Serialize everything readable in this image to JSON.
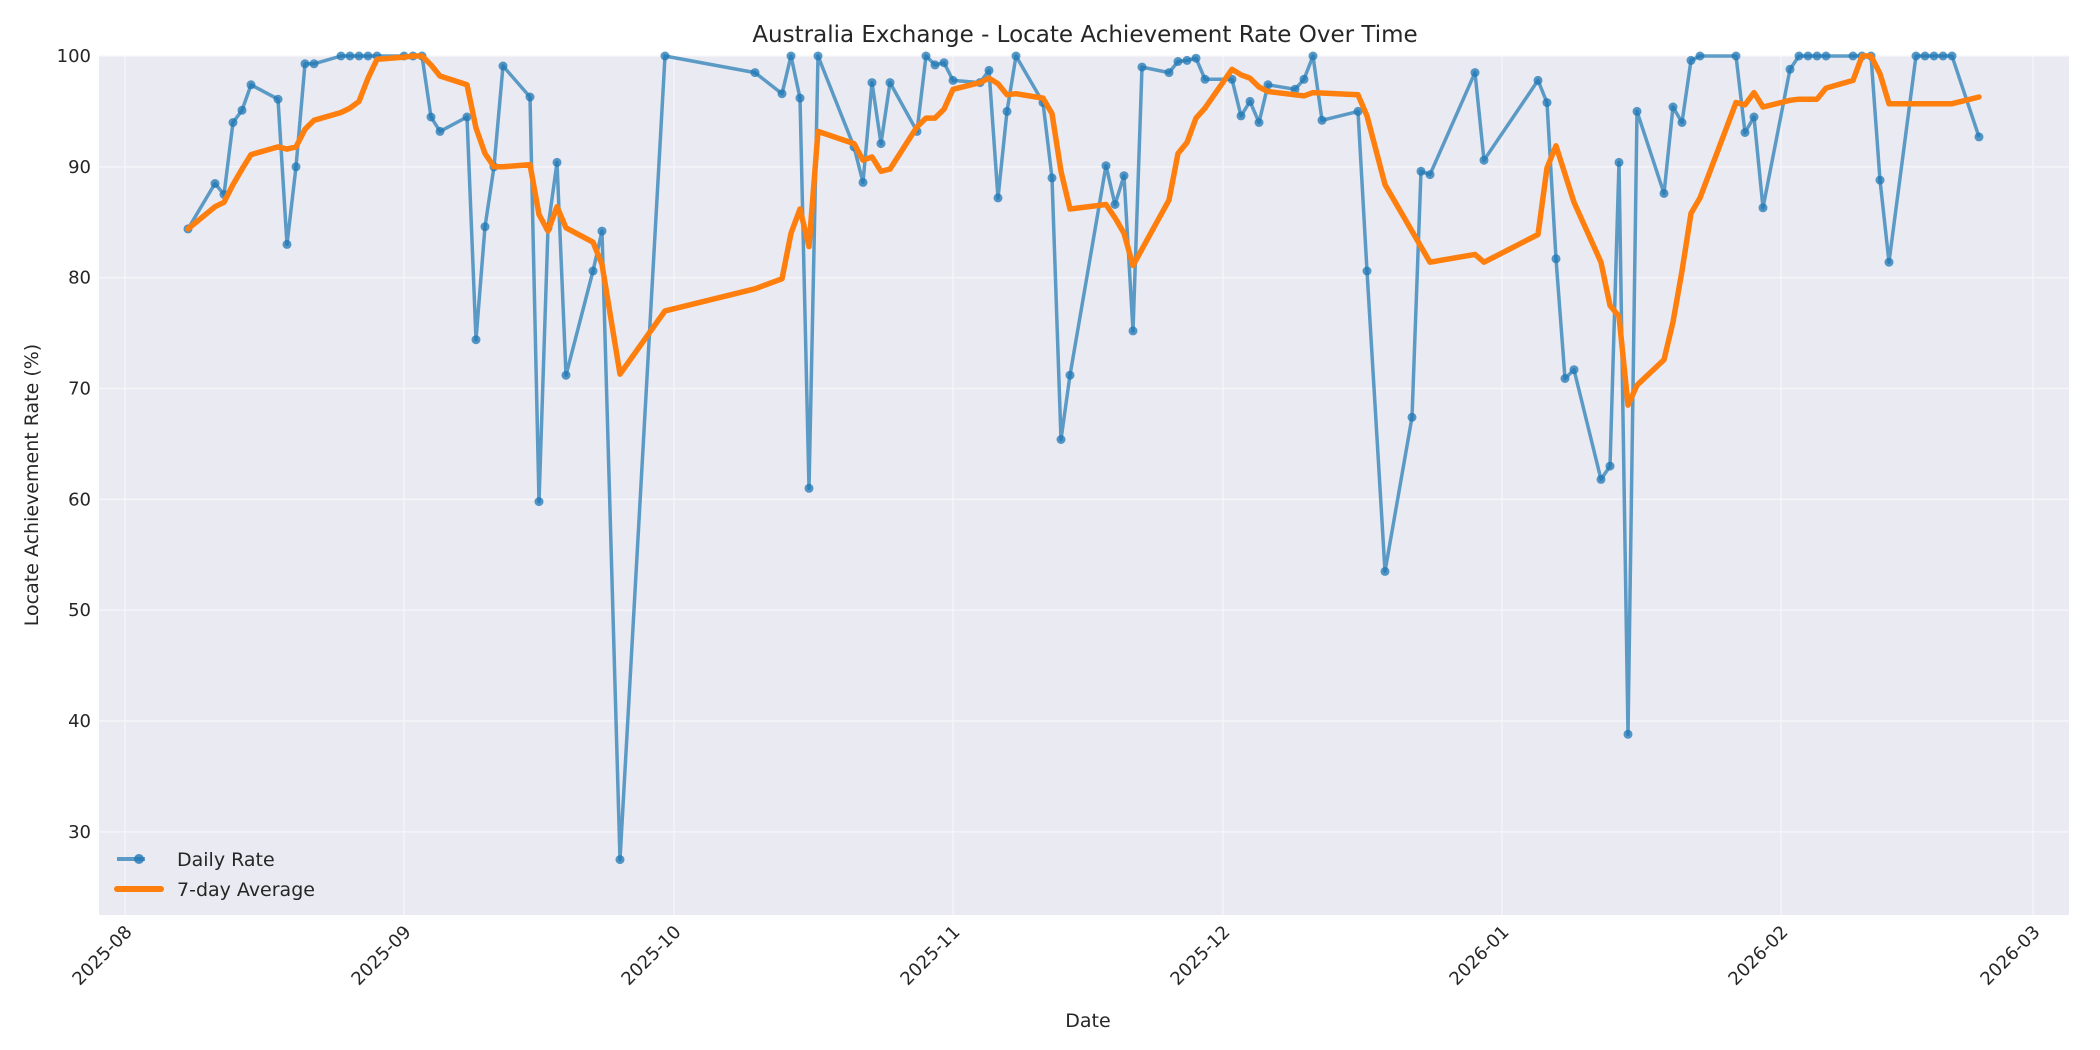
{
  "chart_data": {
    "type": "line",
    "title": "Australia Exchange - Locate Achievement Rate Over Time",
    "xlabel": "Date",
    "ylabel": "Locate Achievement Rate (%)",
    "ylim": [
      22.5,
      100
    ],
    "xlim": [
      "2025-07-29",
      "2026-03-04"
    ],
    "grid": true,
    "legend_position": "lower left",
    "x_ticks": [
      "2025-08",
      "2025-09",
      "2025-10",
      "2025-11",
      "2025-12",
      "2026-01",
      "2026-02",
      "2026-03"
    ],
    "y_ticks": [
      30,
      40,
      50,
      60,
      70,
      80,
      90,
      100
    ],
    "colors": {
      "daily": "#1f77b4",
      "average": "#ff7f0e",
      "plot_bg": "#eaeaf2",
      "grid": "#f5f5f8"
    },
    "series": [
      {
        "name": "Daily Rate",
        "style": "line-marker",
        "points": [
          [
            "2025-08-08",
            84.4
          ],
          [
            "2025-08-11",
            88.5
          ],
          [
            "2025-08-12",
            87.5
          ],
          [
            "2025-08-13",
            94.0
          ],
          [
            "2025-08-14",
            95.1
          ],
          [
            "2025-08-15",
            97.4
          ],
          [
            "2025-08-18",
            96.1
          ],
          [
            "2025-08-19",
            83.0
          ],
          [
            "2025-08-20",
            90.0
          ],
          [
            "2025-08-21",
            99.3
          ],
          [
            "2025-08-22",
            99.3
          ],
          [
            "2025-08-25",
            100
          ],
          [
            "2025-08-26",
            100
          ],
          [
            "2025-08-27",
            100
          ],
          [
            "2025-08-28",
            100
          ],
          [
            "2025-08-29",
            100
          ],
          [
            "2025-09-01",
            100
          ],
          [
            "2025-09-02",
            100
          ],
          [
            "2025-09-03",
            100
          ],
          [
            "2025-09-04",
            94.5
          ],
          [
            "2025-09-05",
            93.2
          ],
          [
            "2025-09-08",
            94.5
          ],
          [
            "2025-09-09",
            74.4
          ],
          [
            "2025-09-10",
            84.6
          ],
          [
            "2025-09-11",
            90.0
          ],
          [
            "2025-09-12",
            99.1
          ],
          [
            "2025-09-15",
            96.3
          ],
          [
            "2025-09-16",
            59.8
          ],
          [
            "2025-09-17",
            84.5
          ],
          [
            "2025-09-18",
            90.4
          ],
          [
            "2025-09-19",
            71.2
          ],
          [
            "2025-09-22",
            80.6
          ],
          [
            "2025-09-23",
            84.2
          ],
          [
            "2025-09-25",
            27.5
          ],
          [
            "2025-09-30",
            100
          ],
          [
            "2025-10-10",
            98.5
          ],
          [
            "2025-10-13",
            96.6
          ],
          [
            "2025-10-14",
            100
          ],
          [
            "2025-10-15",
            96.2
          ],
          [
            "2025-10-16",
            61.0
          ],
          [
            "2025-10-17",
            100
          ],
          [
            "2025-10-21",
            91.8
          ],
          [
            "2025-10-22",
            88.6
          ],
          [
            "2025-10-23",
            97.6
          ],
          [
            "2025-10-24",
            92.1
          ],
          [
            "2025-10-25",
            97.6
          ],
          [
            "2025-10-28",
            93.2
          ],
          [
            "2025-10-29",
            100
          ],
          [
            "2025-10-30",
            99.2
          ],
          [
            "2025-10-31",
            99.4
          ],
          [
            "2025-11-01",
            97.8
          ],
          [
            "2025-11-04",
            97.6
          ],
          [
            "2025-11-05",
            98.7
          ],
          [
            "2025-11-06",
            87.2
          ],
          [
            "2025-11-07",
            95.0
          ],
          [
            "2025-11-08",
            100
          ],
          [
            "2025-11-11",
            95.8
          ],
          [
            "2025-11-12",
            89.0
          ],
          [
            "2025-11-13",
            65.4
          ],
          [
            "2025-11-14",
            71.2
          ],
          [
            "2025-11-18",
            90.1
          ],
          [
            "2025-11-19",
            86.6
          ],
          [
            "2025-11-20",
            89.2
          ],
          [
            "2025-11-21",
            75.2
          ],
          [
            "2025-11-22",
            99.0
          ],
          [
            "2025-11-25",
            98.5
          ],
          [
            "2025-11-26",
            99.5
          ],
          [
            "2025-11-27",
            99.6
          ],
          [
            "2025-11-28",
            99.8
          ],
          [
            "2025-11-29",
            97.9
          ],
          [
            "2025-12-02",
            97.9
          ],
          [
            "2025-12-03",
            94.6
          ],
          [
            "2025-12-04",
            95.9
          ],
          [
            "2025-12-05",
            94.0
          ],
          [
            "2025-12-06",
            97.4
          ],
          [
            "2025-12-09",
            97.0
          ],
          [
            "2025-12-10",
            97.9
          ],
          [
            "2025-12-11",
            100
          ],
          [
            "2025-12-12",
            94.2
          ],
          [
            "2025-12-16",
            95.0
          ],
          [
            "2025-12-17",
            80.6
          ],
          [
            "2025-12-19",
            53.5
          ],
          [
            "2025-12-22",
            67.4
          ],
          [
            "2025-12-23",
            89.6
          ],
          [
            "2025-12-24",
            89.3
          ],
          [
            "2025-12-29",
            98.5
          ],
          [
            "2025-12-30",
            90.6
          ],
          [
            "2026-01-05",
            97.8
          ],
          [
            "2026-01-06",
            95.8
          ],
          [
            "2026-01-07",
            81.7
          ],
          [
            "2026-01-08",
            70.9
          ],
          [
            "2026-01-09",
            71.7
          ],
          [
            "2026-01-12",
            61.8
          ],
          [
            "2026-01-13",
            63.0
          ],
          [
            "2026-01-14",
            90.4
          ],
          [
            "2026-01-15",
            38.8
          ],
          [
            "2026-01-16",
            95.0
          ],
          [
            "2026-01-19",
            87.6
          ],
          [
            "2026-01-20",
            95.4
          ],
          [
            "2026-01-21",
            94.0
          ],
          [
            "2026-01-22",
            99.6
          ],
          [
            "2026-01-23",
            100
          ],
          [
            "2026-01-27",
            100
          ],
          [
            "2026-01-28",
            93.1
          ],
          [
            "2026-01-29",
            94.5
          ],
          [
            "2026-01-30",
            86.3
          ],
          [
            "2026-02-02",
            98.8
          ],
          [
            "2026-02-03",
            100
          ],
          [
            "2026-02-04",
            100
          ],
          [
            "2026-02-05",
            100
          ],
          [
            "2026-02-06",
            100
          ],
          [
            "2026-02-09",
            100
          ],
          [
            "2026-02-10",
            100
          ],
          [
            "2026-02-11",
            100
          ],
          [
            "2026-02-12",
            88.8
          ],
          [
            "2026-02-13",
            81.4
          ],
          [
            "2026-02-16",
            100
          ],
          [
            "2026-02-17",
            100
          ],
          [
            "2026-02-18",
            100
          ],
          [
            "2026-02-19",
            100
          ],
          [
            "2026-02-20",
            100
          ],
          [
            "2026-02-23",
            92.7
          ]
        ]
      },
      {
        "name": "7-day Average",
        "style": "line",
        "points": [
          [
            "2025-08-08",
            84.4
          ],
          [
            "2025-08-11",
            86.4
          ],
          [
            "2025-08-12",
            86.8
          ],
          [
            "2025-08-13",
            88.4
          ],
          [
            "2025-08-14",
            89.8
          ],
          [
            "2025-08-15",
            91.1
          ],
          [
            "2025-08-18",
            91.8
          ],
          [
            "2025-08-19",
            91.6
          ],
          [
            "2025-08-20",
            91.8
          ],
          [
            "2025-08-21",
            93.4
          ],
          [
            "2025-08-22",
            94.2
          ],
          [
            "2025-08-25",
            94.9
          ],
          [
            "2025-08-26",
            95.3
          ],
          [
            "2025-08-27",
            95.9
          ],
          [
            "2025-08-28",
            98.0
          ],
          [
            "2025-08-29",
            99.7
          ],
          [
            "2025-09-01",
            99.9
          ],
          [
            "2025-09-02",
            100
          ],
          [
            "2025-09-03",
            100
          ],
          [
            "2025-09-04",
            99.2
          ],
          [
            "2025-09-05",
            98.2
          ],
          [
            "2025-09-08",
            97.4
          ],
          [
            "2025-09-09",
            93.5
          ],
          [
            "2025-09-10",
            91.2
          ],
          [
            "2025-09-11",
            90.0
          ],
          [
            "2025-09-12",
            90.0
          ],
          [
            "2025-09-15",
            90.2
          ],
          [
            "2025-09-16",
            85.7
          ],
          [
            "2025-09-17",
            84.2
          ],
          [
            "2025-09-18",
            86.4
          ],
          [
            "2025-09-19",
            84.5
          ],
          [
            "2025-09-22",
            83.2
          ],
          [
            "2025-09-23",
            81.2
          ],
          [
            "2025-09-25",
            71.3
          ],
          [
            "2025-09-30",
            77.0
          ],
          [
            "2025-10-10",
            79.0
          ],
          [
            "2025-10-13",
            79.9
          ],
          [
            "2025-10-14",
            84.0
          ],
          [
            "2025-10-15",
            86.2
          ],
          [
            "2025-10-16",
            82.8
          ],
          [
            "2025-10-17",
            93.2
          ],
          [
            "2025-10-21",
            92.1
          ],
          [
            "2025-10-22",
            90.6
          ],
          [
            "2025-10-23",
            90.9
          ],
          [
            "2025-10-24",
            89.6
          ],
          [
            "2025-10-25",
            89.8
          ],
          [
            "2025-10-28",
            93.6
          ],
          [
            "2025-10-29",
            94.4
          ],
          [
            "2025-10-30",
            94.4
          ],
          [
            "2025-10-31",
            95.2
          ],
          [
            "2025-11-01",
            97.0
          ],
          [
            "2025-11-04",
            97.6
          ],
          [
            "2025-11-05",
            98.0
          ],
          [
            "2025-11-06",
            97.5
          ],
          [
            "2025-11-07",
            96.5
          ],
          [
            "2025-11-08",
            96.6
          ],
          [
            "2025-11-11",
            96.2
          ],
          [
            "2025-11-12",
            94.8
          ],
          [
            "2025-11-13",
            89.6
          ],
          [
            "2025-11-14",
            86.2
          ],
          [
            "2025-11-18",
            86.6
          ],
          [
            "2025-11-19",
            85.4
          ],
          [
            "2025-11-20",
            84.0
          ],
          [
            "2025-11-21",
            81.1
          ],
          [
            "2025-11-25",
            87.0
          ],
          [
            "2025-11-26",
            91.2
          ],
          [
            "2025-11-27",
            92.2
          ],
          [
            "2025-11-28",
            94.4
          ],
          [
            "2025-11-29",
            95.3
          ],
          [
            "2025-12-02",
            98.8
          ],
          [
            "2025-12-03",
            98.3
          ],
          [
            "2025-12-04",
            98.0
          ],
          [
            "2025-12-05",
            97.2
          ],
          [
            "2025-12-06",
            96.8
          ],
          [
            "2025-12-09",
            96.5
          ],
          [
            "2025-12-10",
            96.4
          ],
          [
            "2025-12-11",
            96.7
          ],
          [
            "2025-12-16",
            96.5
          ],
          [
            "2025-12-17",
            94.6
          ],
          [
            "2025-12-19",
            88.4
          ],
          [
            "2025-12-24",
            81.4
          ],
          [
            "2025-12-29",
            82.1
          ],
          [
            "2025-12-30",
            81.4
          ],
          [
            "2026-01-05",
            83.9
          ],
          [
            "2026-01-06",
            89.9
          ],
          [
            "2026-01-07",
            91.9
          ],
          [
            "2026-01-09",
            86.8
          ],
          [
            "2026-01-12",
            81.4
          ],
          [
            "2026-01-13",
            77.5
          ],
          [
            "2026-01-14",
            76.5
          ],
          [
            "2026-01-15",
            68.5
          ],
          [
            "2026-01-16",
            70.3
          ],
          [
            "2026-01-19",
            72.6
          ],
          [
            "2026-01-20",
            76.0
          ],
          [
            "2026-01-21",
            80.6
          ],
          [
            "2026-01-22",
            85.8
          ],
          [
            "2026-01-23",
            87.2
          ],
          [
            "2026-01-27",
            95.8
          ],
          [
            "2026-01-28",
            95.6
          ],
          [
            "2026-01-29",
            96.7
          ],
          [
            "2026-01-30",
            95.4
          ],
          [
            "2026-02-02",
            96.0
          ],
          [
            "2026-02-03",
            96.1
          ],
          [
            "2026-02-04",
            96.1
          ],
          [
            "2026-02-05",
            96.1
          ],
          [
            "2026-02-06",
            97.1
          ],
          [
            "2026-02-09",
            97.8
          ],
          [
            "2026-02-10",
            100
          ],
          [
            "2026-02-11",
            100
          ],
          [
            "2026-02-12",
            98.4
          ],
          [
            "2026-02-13",
            95.7
          ],
          [
            "2026-02-16",
            95.7
          ],
          [
            "2026-02-17",
            95.7
          ],
          [
            "2026-02-18",
            95.7
          ],
          [
            "2026-02-19",
            95.7
          ],
          [
            "2026-02-20",
            95.7
          ],
          [
            "2026-02-23",
            96.3
          ]
        ]
      }
    ]
  }
}
